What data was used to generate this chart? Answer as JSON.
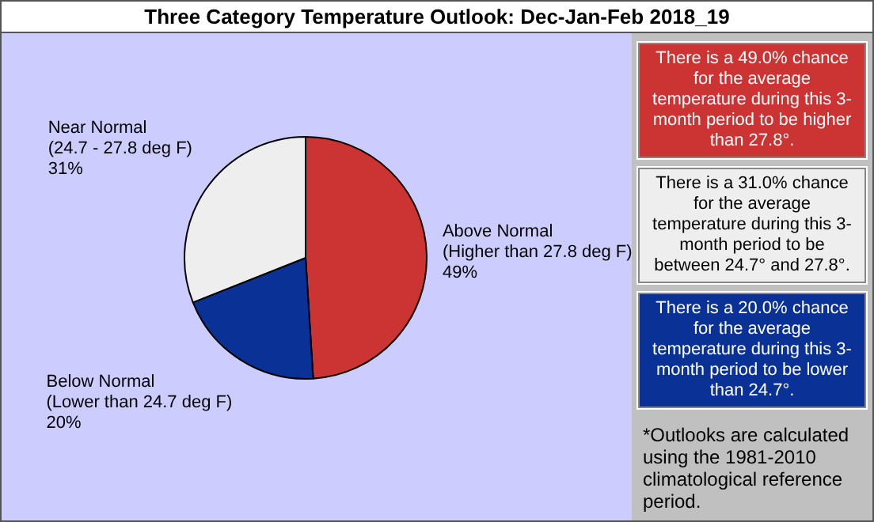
{
  "chart_data": {
    "type": "pie",
    "title": "Three Category Temperature Outlook: Dec-Jan-Feb 2018_19",
    "categories": [
      "Above Normal\n(Higher than 27.8 deg F)",
      "Below Normal\n(Lower than 24.7 deg F)",
      "Near Normal\n(24.7 - 27.8 deg F)"
    ],
    "values": [
      49,
      20,
      31
    ],
    "colors": [
      "#cc3333",
      "#0a3296",
      "#eeeeee"
    ],
    "value_labels": [
      "49%",
      "20%",
      "31%"
    ],
    "legend": false,
    "annotations": [
      "There is a 49.0% chance for the average temperature during this 3-month period to be higher than 27.8°.",
      "There is a 20.0% chance for the average temperature during this 3-month period to be lower than 24.7°.",
      "There is a 31.0% chance for the average temperature during this 3-month period to be between 24.7° and 27.8°.",
      "*Outlooks are calculated using the 1981-2010 climatological reference period."
    ]
  }
}
